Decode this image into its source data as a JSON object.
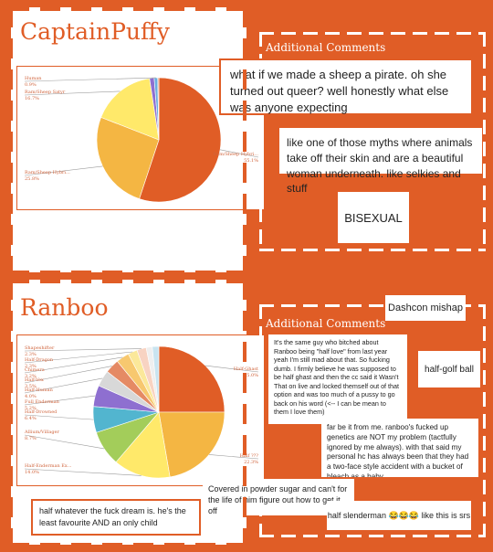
{
  "colors": {
    "accent": "#e05d26",
    "panel": "#ffffff"
  },
  "sections": [
    {
      "title": "CaptainPuffy",
      "comments_title": "Additional Comments",
      "comments": [
        "what if we made a sheep a pirate. oh she turned out queer? well honestly what else was anyone expecting",
        "like one of those myths where animals take off their skin and are a beautiful woman underneath. like selkies and stuff",
        "BISEXUAL"
      ]
    },
    {
      "title": "Ranboo",
      "comments_title": "Additional Comments",
      "comments": [
        "Dashcon mishap",
        "It's the same guy who bitched about Ranboo being \"half love\" from last year yeah I'm still mad about that. So fucking dumb. I firmly believe he was supposed to be half ghast and then the cc said it Wasn't That on live and locked themself out of that option and was too much of a pussy to go back on his word (<-- I can be mean to them I love them)",
        "half-golf ball",
        "far be it from me. ranboo's fucked up genetics are NOT my problem (tactfully ignored by me always). with that said my personal hc has always been that they had a two-face style accident with a bucket of bleach as a baby",
        "Covered in powder sugar and can't for the life of him figure out how to get it off",
        "half whatever the fuck dream is. he's the least favourite AND an only child",
        "half slenderman 😂😂😂 like this is srs"
      ]
    }
  ],
  "chart_data": [
    {
      "type": "pie",
      "slices": [
        {
          "label": "Ram/Sheep Hybri...",
          "value": 55.1,
          "pct_label": "55.1%",
          "color": "#e05d26"
        },
        {
          "label": "Ram/Sheep Hybri...",
          "value": 25.8,
          "pct_label": "25.8%",
          "color": "#f4b643"
        },
        {
          "label": "Ram/Sheep Satyr",
          "value": 16.7,
          "pct_label": "16.7%",
          "color": "#ffe96a"
        },
        {
          "label": "",
          "value": 1.2,
          "pct_label": "",
          "color": "#8e6fd0"
        },
        {
          "label": "Human",
          "value": 0.9,
          "pct_label": "0.9%",
          "color": "#6aaee0"
        },
        {
          "label": "",
          "value": 0.3,
          "pct_label": "",
          "color": "#f2a27b"
        }
      ]
    },
    {
      "type": "pie",
      "slices": [
        {
          "label": "Half-Ghast",
          "value": 25.0,
          "pct_label": "25.0%",
          "color": "#e05d26"
        },
        {
          "label": "Half ???",
          "value": 22.3,
          "pct_label": "22.3%",
          "color": "#f4b643"
        },
        {
          "label": "Half-Enderman Ex...",
          "value": 14.0,
          "pct_label": "14.0%",
          "color": "#ffe96a"
        },
        {
          "label": "Allium/Villager",
          "value": 8.7,
          "pct_label": "8.7%",
          "color": "#a3cd5a"
        },
        {
          "label": "Half-Drowned",
          "value": 6.4,
          "pct_label": "6.4%",
          "color": "#52b5cf"
        },
        {
          "label": "Full Enderman",
          "value": 5.2,
          "pct_label": "5.2%",
          "color": "#8e6fd0"
        },
        {
          "label": "Half-Human",
          "value": 4.0,
          "pct_label": "4.0%",
          "color": "#d8d8d8"
        },
        {
          "label": "Half-Vex",
          "value": 3.5,
          "pct_label": "3.5%",
          "color": "#e58a64"
        },
        {
          "label": "Chimera",
          "value": 3.2,
          "pct_label": "3.2%",
          "color": "#f7c86f"
        },
        {
          "label": "Half-Dragon",
          "value": 2.3,
          "pct_label": "2.3%",
          "color": "#fbe89a"
        },
        {
          "label": "Shapeshifter",
          "value": 2.3,
          "pct_label": "2.3%",
          "color": "#f8d3c2"
        },
        {
          "label": "",
          "value": 1.5,
          "pct_label": "",
          "color": "#efefef"
        },
        {
          "label": "",
          "value": 1.6,
          "pct_label": "",
          "color": "#c9e4f0"
        }
      ]
    }
  ]
}
